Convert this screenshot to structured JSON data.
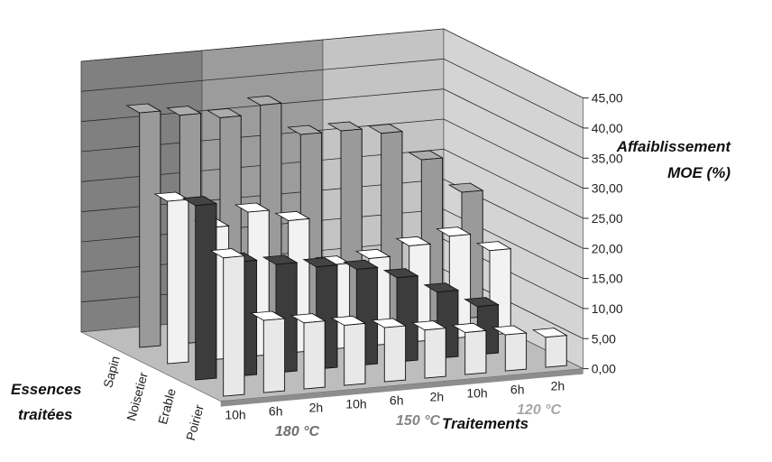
{
  "chart_data": {
    "type": "bar3d",
    "ylabel_lines": [
      "Affaiblissement",
      "MOE (%)"
    ],
    "xlabel": "Traitements",
    "zlabel_lines": [
      "Essences",
      "traitées"
    ],
    "ylim": [
      0,
      45
    ],
    "yticks": [
      "0,00",
      "5,00",
      "10,00",
      "15,00",
      "20,00",
      "25,00",
      "30,00",
      "35,00",
      "40,00",
      "45,00"
    ],
    "categories": [
      "10h",
      "6h",
      "2h",
      "10h",
      "6h",
      "2h",
      "10h",
      "6h",
      "2h"
    ],
    "groups": [
      {
        "label": "180 °C",
        "color": "#808080"
      },
      {
        "label": "150 °C",
        "color": "#9c9c9c"
      },
      {
        "label": "120 °C",
        "color": "#c4c4c4"
      }
    ],
    "series": [
      {
        "name": "Sapin",
        "color": "#9a9a9a",
        "values": [
          39,
          38,
          37,
          38.5,
          33,
          33,
          32,
          27,
          21
        ]
      },
      {
        "name": "Noisetier",
        "color": "#f2f2f2",
        "values": [
          27,
          22,
          24,
          22,
          14,
          14.5,
          16,
          17,
          14
        ]
      },
      {
        "name": "Erable",
        "color": "#3c3c3c",
        "values": [
          29,
          19,
          18,
          17,
          16,
          14,
          11,
          8,
          null
        ]
      },
      {
        "name": "Poirier",
        "color": "#e8e8e8",
        "values": [
          23,
          12,
          11,
          10,
          9,
          8,
          7,
          6,
          5
        ]
      }
    ]
  }
}
